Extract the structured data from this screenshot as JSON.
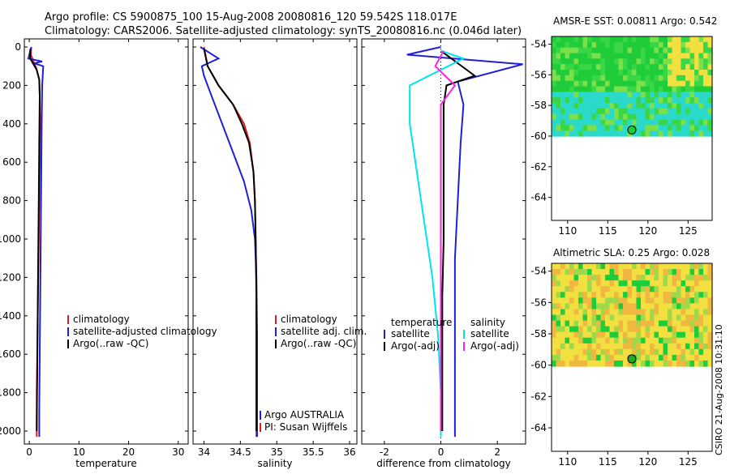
{
  "header": {
    "line1": "Argo profile: CS 5900875_100 15-Aug-2008 20080816_120 59.542S 118.017E",
    "line2": "Climatology: CARS2006. Satellite-adjusted climatology: synTS_20080816.nc (0.046d later)"
  },
  "stamp": "CSIRO 21-Aug-2008 10:31:10",
  "colors": {
    "red": "#e41a1c",
    "blue": "#1f1fd6",
    "black": "#000000",
    "cyan": "#00e5ee",
    "magenta": "#ff22dd",
    "map_green": "#1fcc3a",
    "map_yellow": "#f2e040",
    "map_cyan": "#2ad9c9",
    "marker_green": "#22aa22"
  },
  "chart_data": [
    {
      "type": "line",
      "id": "temperature",
      "xlabel": "temperature",
      "ylabel": "",
      "xlim": [
        -1,
        32
      ],
      "ylim": [
        2050,
        0
      ],
      "y_inverted": true,
      "xticks": [
        0,
        10,
        20,
        30
      ],
      "yticks": [
        0,
        200,
        400,
        600,
        800,
        1000,
        1200,
        1400,
        1600,
        1800,
        2000
      ],
      "legend": [
        "climatology",
        "satellite-adjusted climatology",
        "Argo(..raw -QC)"
      ],
      "series": [
        {
          "name": "climatology",
          "color": "red",
          "x": [
            0.4,
            0.3,
            1.4,
            2.0,
            2.1,
            2.2,
            2.1,
            2.0,
            1.9,
            1.8,
            1.7,
            1.6,
            1.5,
            1.5,
            1.5
          ],
          "y": [
            0,
            40,
            110,
            170,
            250,
            400,
            600,
            800,
            1000,
            1200,
            1400,
            1600,
            1800,
            1950,
            2030
          ]
        },
        {
          "name": "satellite-adjusted climatology",
          "color": "blue",
          "x": [
            0.4,
            -0.2,
            2.6,
            1.0,
            2.8,
            2.6,
            2.5,
            2.4,
            2.3,
            2.2,
            2.1,
            2.0,
            2.0,
            2.0
          ],
          "y": [
            0,
            60,
            75,
            85,
            100,
            200,
            400,
            700,
            1000,
            1300,
            1600,
            1900,
            2000,
            2030
          ]
        },
        {
          "name": "Argo(..raw -QC)",
          "color": "black",
          "x": [
            0.2,
            0.2,
            1.5,
            2.0,
            2.1,
            2.0,
            1.9,
            1.8,
            1.7,
            1.6,
            1.5,
            1.5
          ],
          "y": [
            10,
            60,
            120,
            170,
            250,
            500,
            800,
            1100,
            1400,
            1700,
            1950,
            2000
          ]
        }
      ]
    },
    {
      "type": "line",
      "id": "salinity",
      "xlabel": "salinity",
      "ylabel": "",
      "xlim": [
        33.85,
        36.1
      ],
      "ylim": [
        2050,
        0
      ],
      "y_inverted": true,
      "xticks": [
        34,
        34.5,
        35,
        35.5,
        36
      ],
      "legend": [
        "climatology",
        "satellite adj. clim.",
        "Argo(..raw -QC)"
      ],
      "annotation": [
        "Argo AUSTRALIA",
        "PI: Susan Wijffels"
      ],
      "series": [
        {
          "name": "climatology",
          "color": "red",
          "x": [
            34.0,
            34.05,
            34.2,
            34.4,
            34.55,
            34.63,
            34.68,
            34.7,
            34.71,
            34.72,
            34.72,
            34.72,
            34.72,
            34.72
          ],
          "y": [
            0,
            100,
            200,
            300,
            400,
            500,
            650,
            800,
            1000,
            1200,
            1400,
            1600,
            1800,
            2030
          ]
        },
        {
          "name": "satellite adj. clim.",
          "color": "blue",
          "x": [
            33.95,
            34.2,
            33.97,
            34.0,
            34.1,
            34.25,
            34.4,
            34.55,
            34.65,
            34.7,
            34.72,
            34.73,
            34.73,
            34.73
          ],
          "y": [
            0,
            60,
            100,
            150,
            250,
            400,
            550,
            700,
            850,
            1000,
            1200,
            1500,
            1800,
            2030
          ]
        },
        {
          "name": "Argo(..raw -QC)",
          "color": "black",
          "x": [
            34.0,
            34.05,
            34.2,
            34.4,
            34.52,
            34.62,
            34.68,
            34.7,
            34.71,
            34.72,
            34.72,
            34.72
          ],
          "y": [
            10,
            100,
            200,
            300,
            400,
            500,
            650,
            800,
            1000,
            1300,
            1700,
            2000
          ]
        }
      ]
    },
    {
      "type": "line",
      "id": "difference",
      "xlabel": "difference from climatology",
      "ylabel": "",
      "xlim": [
        -2.8,
        3.0
      ],
      "ylim": [
        2050,
        0
      ],
      "y_inverted": true,
      "xticks": [
        -2,
        0,
        2
      ],
      "legend_groups": [
        {
          "title": "temperature",
          "items": [
            "satellite",
            "Argo(-adj)"
          ]
        },
        {
          "title": "salinity",
          "items": [
            "satellite",
            "Argo(-adj)"
          ]
        }
      ],
      "series": [
        {
          "name": "temperature satellite",
          "color": "blue",
          "x": [
            0.0,
            -1.2,
            2.9,
            0.6,
            0.8,
            0.7,
            0.6,
            0.5,
            0.5,
            0.5,
            0.5
          ],
          "y": [
            0,
            40,
            90,
            180,
            300,
            500,
            800,
            1100,
            1400,
            1800,
            2030
          ]
        },
        {
          "name": "temperature Argo(-adj)",
          "color": "black",
          "x": [
            0.0,
            1.2,
            0.2,
            0.1,
            0.1,
            0.1,
            0.1,
            0.05,
            0.05,
            0.05
          ],
          "y": [
            20,
            150,
            200,
            300,
            500,
            800,
            1000,
            1300,
            1700,
            2000
          ]
        },
        {
          "name": "salinity satellite",
          "color": "cyan",
          "x": [
            0.0,
            0.8,
            -1.1,
            -1.1,
            -0.9,
            -0.7,
            -0.5,
            -0.3,
            -0.1,
            0.0,
            0.0
          ],
          "y": [
            20,
            60,
            200,
            400,
            600,
            800,
            1000,
            1200,
            1500,
            1800,
            2030
          ]
        },
        {
          "name": "salinity Argo(-adj)",
          "color": "magenta",
          "x": [
            0.1,
            -0.2,
            0.5,
            0.0,
            0.0,
            0.0,
            0.0
          ],
          "y": [
            20,
            100,
            200,
            300,
            700,
            1200,
            2000
          ]
        }
      ]
    }
  ],
  "maps": [
    {
      "id": "sst",
      "title": "AMSR-E SST: 0.00811 Argo: 0.542",
      "xticks": [
        110,
        115,
        120,
        125
      ],
      "yticks": [
        -54,
        -56,
        -58,
        -60,
        -62,
        -64
      ],
      "marker": {
        "lon": 118.0,
        "lat": -59.6,
        "fill": "map_green"
      }
    },
    {
      "id": "sla",
      "title": "Altimetric SLA: 0.25 Argo: 0.028",
      "xticks": [
        110,
        115,
        120,
        125
      ],
      "yticks": [
        -54,
        -56,
        -58,
        -60,
        -62,
        -64
      ],
      "marker": {
        "lon": 118.0,
        "lat": -59.6,
        "fill": "marker_green"
      }
    }
  ]
}
